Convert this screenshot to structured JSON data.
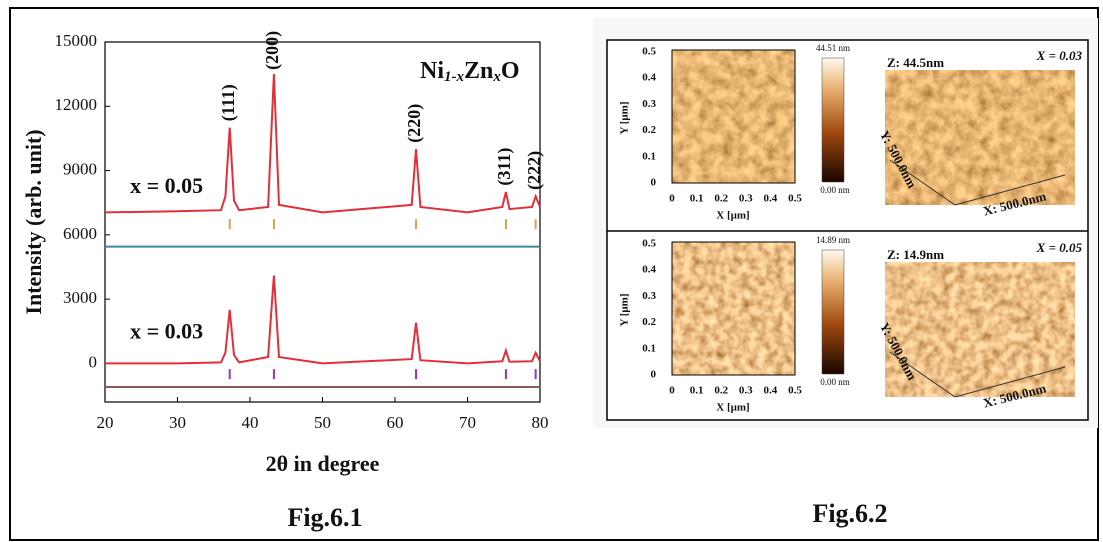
{
  "chart_data": {
    "type": "line",
    "title_parts": [
      "Ni",
      "1-x",
      "Zn",
      "x",
      "O"
    ],
    "xlabel": "2θ in degree",
    "ylabel": "Intensity (arb. unit)",
    "xlim": [
      20,
      80
    ],
    "xticks": [
      20,
      30,
      40,
      50,
      60,
      70,
      80
    ],
    "ylim": [
      -1800,
      15000
    ],
    "yticks": [
      0,
      3000,
      6000,
      9000,
      12000,
      15000
    ],
    "series": [
      {
        "color": "#e0303a",
        "x": [
          20,
          30,
          36,
          36.6,
          37.2,
          37.8,
          38.5,
          42.5,
          43.3,
          44,
          50,
          62.3,
          62.9,
          63.5,
          70,
          74.8,
          75.3,
          75.8,
          78.9,
          79.4,
          80
        ],
        "values": [
          7050,
          7100,
          7150,
          7800,
          11000,
          7600,
          7150,
          7300,
          13500,
          7400,
          7050,
          7400,
          10000,
          7300,
          7050,
          7300,
          8000,
          7200,
          7300,
          7800,
          7300
        ]
      },
      {
        "color": "#3a8a9a",
        "x": [
          20,
          80
        ],
        "values": [
          5450,
          5450
        ]
      },
      {
        "color": "#e0303a",
        "x": [
          20,
          30,
          36,
          36.6,
          37.2,
          37.8,
          38.5,
          42.5,
          43.3,
          44,
          50,
          62.3,
          62.9,
          63.5,
          70,
          74.8,
          75.3,
          75.8,
          78.9,
          79.4,
          80
        ],
        "values": [
          0,
          0,
          50,
          500,
          2500,
          400,
          50,
          300,
          4100,
          300,
          0,
          200,
          1900,
          150,
          0,
          100,
          600,
          80,
          100,
          500,
          100
        ]
      },
      {
        "color": "#8b5a5a",
        "x": [
          20,
          80
        ],
        "values": [
          -1100,
          -1100
        ]
      }
    ],
    "reflection_marks": [
      {
        "color": "#d9a05a",
        "y": 6500,
        "x": [
          37.2,
          43.3,
          62.9,
          75.3,
          79.4
        ]
      },
      {
        "color": "#9b30c8",
        "y": -500,
        "x": [
          37.2,
          43.3,
          62.9,
          75.3,
          79.4
        ]
      }
    ],
    "peak_labels": [
      {
        "text": "(111)",
        "x": 37.2,
        "y": 11300
      },
      {
        "text": "(200)",
        "x": 43.3,
        "y": 13700
      },
      {
        "text": "(220)",
        "x": 62.9,
        "y": 10300
      },
      {
        "text": "(311)",
        "x": 75.3,
        "y": 8300
      },
      {
        "text": "(222)",
        "x": 79.4,
        "y": 8100
      }
    ],
    "curve_labels": [
      {
        "text": "x = 0.05",
        "x": 28.5,
        "y": 8200
      },
      {
        "text": "x = 0.03",
        "x": 28.5,
        "y": 1400
      }
    ],
    "caption": "Fig.6.1"
  },
  "figure2": {
    "caption": "Fig.6.2",
    "panels": [
      {
        "x_label": "X [μm]",
        "y_label": "Y [μm]",
        "xticks": [
          "0",
          "0.1",
          "0.2",
          "0.3",
          "0.4",
          "0.5"
        ],
        "yticks": [
          "0",
          "0.1",
          "0.2",
          "0.3",
          "0.4",
          "0.5"
        ],
        "scale_max": "44.51 nm",
        "scale_min": "0.00 nm",
        "z_label": "Z: 44.5nm",
        "y3d_label": "Y: 500.0nm",
        "x3d_label": "X: 500.0nm",
        "composition": "X = 0.03"
      },
      {
        "x_label": "X [μm]",
        "y_label": "Y [μm]",
        "xticks": [
          "0",
          "0.1",
          "0.2",
          "0.3",
          "0.4",
          "0.5"
        ],
        "yticks": [
          "0",
          "0.1",
          "0.2",
          "0.3",
          "0.4",
          "0.5"
        ],
        "scale_max": "14.89 nm",
        "scale_min": "0.00 nm",
        "z_label": "Z: 14.9nm",
        "y3d_label": "Y: 500.0nm",
        "x3d_label": "X: 500.0nm",
        "composition": "X = 0.05"
      }
    ]
  }
}
